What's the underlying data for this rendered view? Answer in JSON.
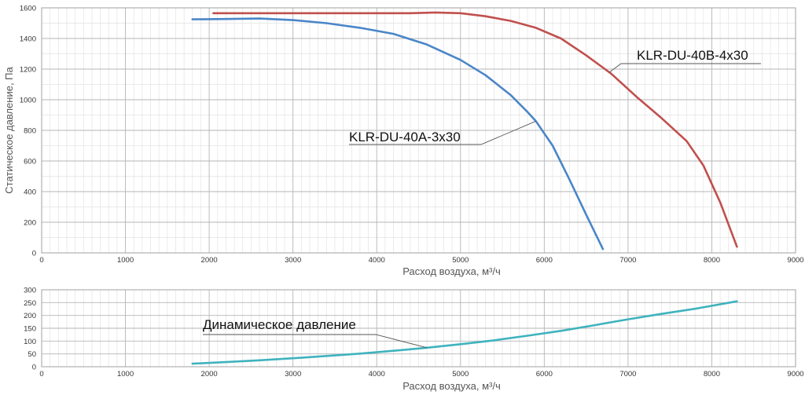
{
  "chart_data": [
    {
      "type": "line",
      "title": "",
      "xlabel": "Расход воздуха, м³/ч",
      "ylabel": "Статическое давление, Па",
      "xlim": [
        0,
        9000
      ],
      "ylim": [
        0,
        1600
      ],
      "x_ticks": [
        "0",
        "1000",
        "2000",
        "3000",
        "4000",
        "5000",
        "6000",
        "7000",
        "8000",
        "9000"
      ],
      "y_ticks": [
        "0",
        "200",
        "400",
        "600",
        "800",
        "1000",
        "1200",
        "1400",
        "1600"
      ],
      "grid": true,
      "legend": "none",
      "series": [
        {
          "name": "KLR-DU-40A-3x30",
          "color": "#4a86c8",
          "points": [
            [
              1800,
              1525
            ],
            [
              2200,
              1527
            ],
            [
              2600,
              1530
            ],
            [
              3000,
              1520
            ],
            [
              3400,
              1500
            ],
            [
              3800,
              1470
            ],
            [
              4200,
              1430
            ],
            [
              4600,
              1360
            ],
            [
              5000,
              1260
            ],
            [
              5300,
              1160
            ],
            [
              5600,
              1030
            ],
            [
              5800,
              920
            ],
            [
              5900,
              860
            ],
            [
              6100,
              700
            ],
            [
              6300,
              480
            ],
            [
              6500,
              250
            ],
            [
              6700,
              25
            ]
          ]
        },
        {
          "name": "KLR-DU-40B-4x30",
          "color": "#c0504d",
          "points": [
            [
              2050,
              1565
            ],
            [
              2500,
              1565
            ],
            [
              3000,
              1565
            ],
            [
              3500,
              1565
            ],
            [
              4000,
              1565
            ],
            [
              4400,
              1565
            ],
            [
              4700,
              1570
            ],
            [
              5000,
              1565
            ],
            [
              5300,
              1545
            ],
            [
              5600,
              1515
            ],
            [
              5900,
              1470
            ],
            [
              6200,
              1400
            ],
            [
              6500,
              1290
            ],
            [
              6800,
              1170
            ],
            [
              7100,
              1020
            ],
            [
              7400,
              880
            ],
            [
              7700,
              730
            ],
            [
              7900,
              570
            ],
            [
              8100,
              330
            ],
            [
              8300,
              40
            ]
          ]
        }
      ],
      "annotations": [
        "KLR-DU-40A-3x30",
        "KLR-DU-40B-4x30"
      ]
    },
    {
      "type": "line",
      "title": "",
      "xlabel": "Расход воздуха, м³/ч",
      "ylabel": "",
      "xlim": [
        0,
        9000
      ],
      "ylim": [
        0,
        300
      ],
      "x_ticks": [
        "0",
        "1000",
        "2000",
        "3000",
        "4000",
        "5000",
        "6000",
        "7000",
        "8000",
        "9000"
      ],
      "y_ticks": [
        "0",
        "50",
        "100",
        "150",
        "200",
        "250",
        "300"
      ],
      "grid": true,
      "legend": "none",
      "series": [
        {
          "name": "Динамическое давление",
          "color": "#3fb3be",
          "points": [
            [
              1800,
              12
            ],
            [
              2200,
              18
            ],
            [
              2600,
              25
            ],
            [
              3000,
              33
            ],
            [
              3400,
              42
            ],
            [
              3800,
              51
            ],
            [
              4200,
              62
            ],
            [
              4600,
              74
            ],
            [
              5000,
              88
            ],
            [
              5400,
              103
            ],
            [
              5800,
              121
            ],
            [
              6200,
              140
            ],
            [
              6600,
              162
            ],
            [
              7000,
              185
            ],
            [
              7400,
              206
            ],
            [
              7800,
              226
            ],
            [
              8300,
              255
            ]
          ]
        }
      ],
      "annotations": [
        "Динамическое давление"
      ]
    }
  ]
}
